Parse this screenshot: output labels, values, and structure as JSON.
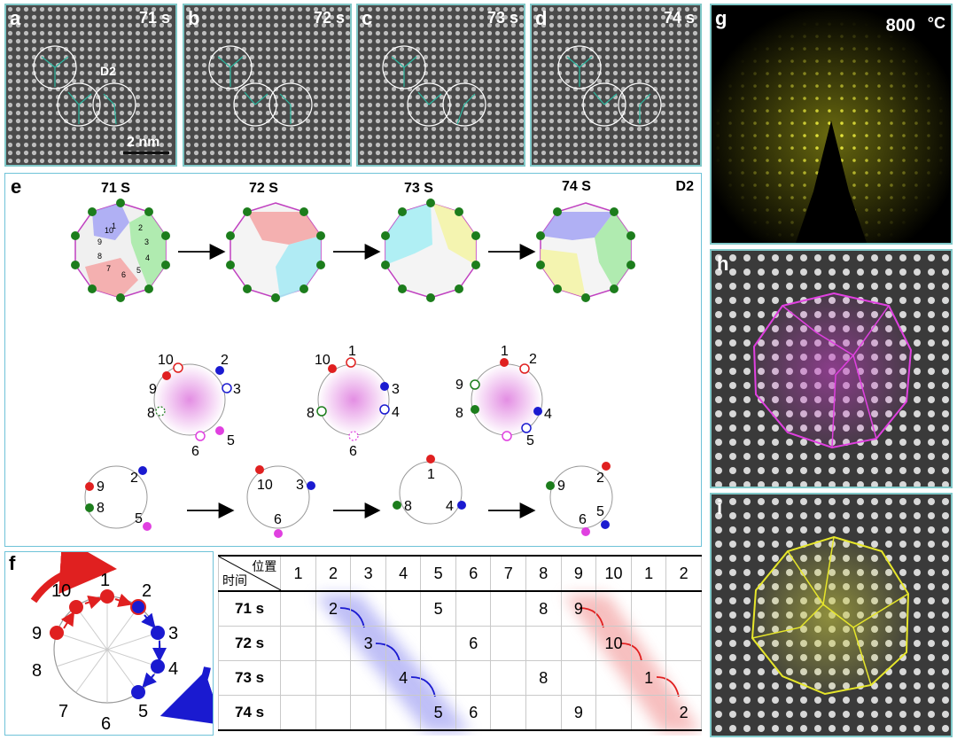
{
  "tem_frames": [
    {
      "label": "a",
      "time": "71 s",
      "cluster_label": "D2",
      "scale_bar": "2 nm"
    },
    {
      "label": "b",
      "time": "72 s"
    },
    {
      "label": "c",
      "time": "73 s"
    },
    {
      "label": "d",
      "time": "74 s"
    }
  ],
  "panel_e": {
    "label": "e",
    "tag": "D2",
    "times": [
      "71 S",
      "72 S",
      "73 S",
      "74 S"
    ],
    "site_numbers": [
      "1",
      "2",
      "3",
      "4",
      "5",
      "6",
      "7",
      "8",
      "9",
      "10"
    ],
    "circles_mid": [
      {
        "labels": [
          "10",
          "2",
          "9",
          "3",
          "8",
          "5",
          "6"
        ]
      },
      {
        "labels": [
          "10",
          "1",
          "3",
          "8",
          "4",
          "6"
        ]
      },
      {
        "labels": [
          "1",
          "2",
          "9",
          "8",
          "4",
          "5"
        ]
      }
    ],
    "circles_bottom": [
      {
        "labels": [
          "2",
          "9",
          "8",
          "5"
        ]
      },
      {
        "labels": [
          "10",
          "3",
          "6"
        ]
      },
      {
        "labels": [
          "1",
          "8",
          "4"
        ]
      },
      {
        "labels": [
          "9",
          "2",
          "6",
          "5"
        ]
      }
    ]
  },
  "panel_f": {
    "label": "f",
    "numbers": [
      "1",
      "2",
      "3",
      "4",
      "5",
      "6",
      "7",
      "8",
      "9",
      "10"
    ],
    "table": {
      "header_top": "位置",
      "header_bottom": "时间",
      "columns": [
        "1",
        "2",
        "3",
        "4",
        "5",
        "6",
        "7",
        "8",
        "9",
        "10",
        "1",
        "2"
      ],
      "rows": [
        {
          "time": "71 s",
          "cells": [
            "",
            "2",
            "",
            "",
            "5",
            "",
            "",
            "8",
            "9",
            "",
            "",
            ""
          ]
        },
        {
          "time": "72 s",
          "cells": [
            "",
            "",
            "3",
            "",
            "",
            "6",
            "",
            "",
            "",
            "10",
            "",
            ""
          ]
        },
        {
          "time": "73 s",
          "cells": [
            "",
            "",
            "",
            "4",
            "",
            "",
            "",
            "8",
            "",
            "",
            "1",
            ""
          ]
        },
        {
          "time": "74 s",
          "cells": [
            "",
            "",
            "",
            "",
            "5",
            "6",
            "",
            "",
            "9",
            "",
            "",
            "2"
          ]
        }
      ]
    }
  },
  "panel_g": {
    "label": "g",
    "temperature": "800",
    "unit": "°C"
  },
  "panel_h": {
    "label": "h"
  },
  "panel_i": {
    "label": "i"
  },
  "colors": {
    "magenta": "#e040e0",
    "yellow": "#e6e62a",
    "green": "#1c7d1c",
    "red": "#e02020",
    "blue": "#1a1ad0",
    "teal_frame": "#7fc8c8"
  }
}
